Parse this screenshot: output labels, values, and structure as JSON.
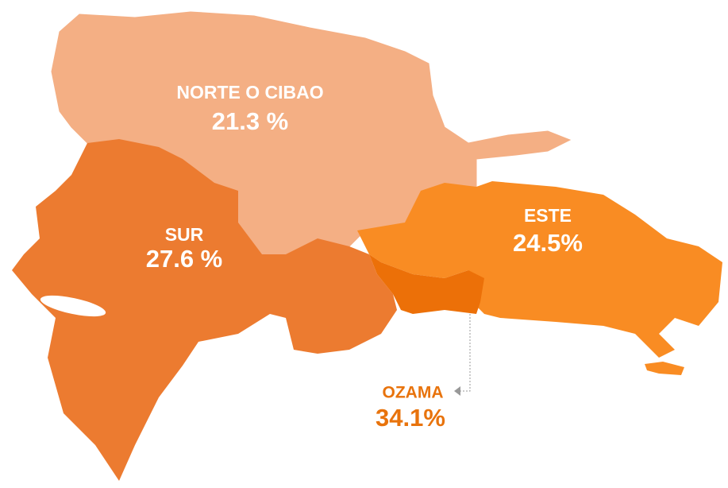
{
  "regions": [
    {
      "name": "NORTE O CIBAO",
      "value": "21.3 %"
    },
    {
      "name": "SUR",
      "value": "27.6 %"
    },
    {
      "name": "ESTE",
      "value": "24.5%"
    },
    {
      "name": "OZAMA",
      "value": "34.1%"
    }
  ]
}
